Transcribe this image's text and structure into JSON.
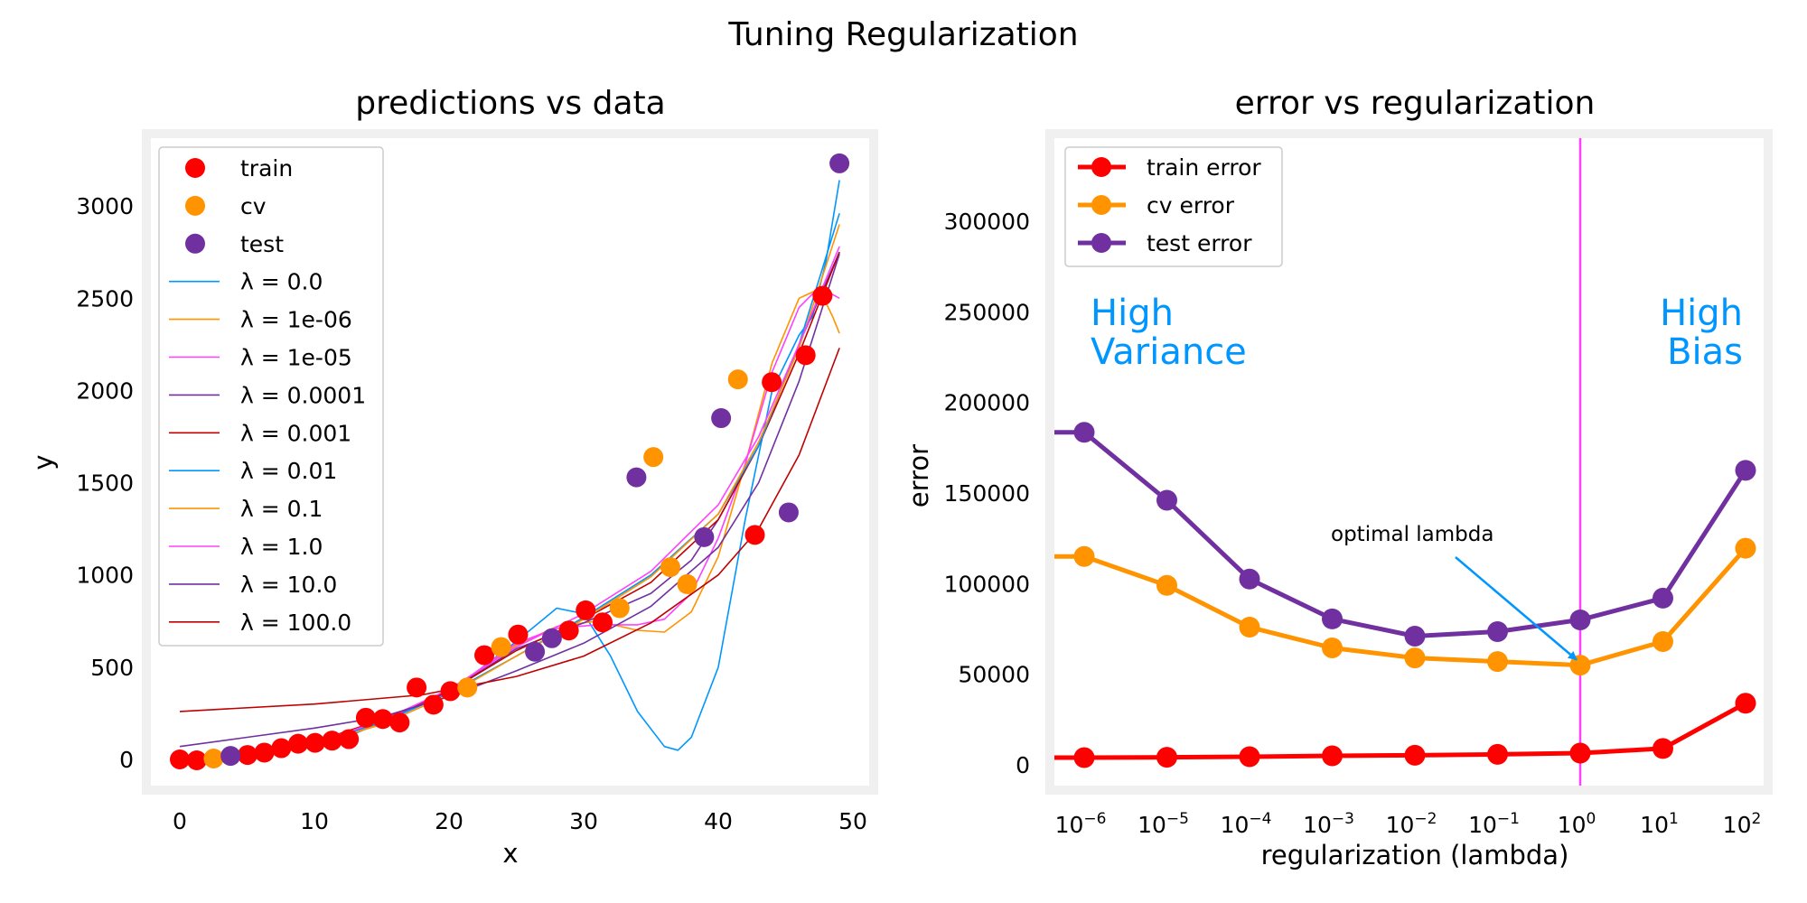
{
  "figure": {
    "title": "Tuning Regularization"
  },
  "chart_data": [
    {
      "type": "scatter",
      "title": "predictions vs data",
      "xlabel": "x",
      "ylabel": "y",
      "xlim": [
        -2,
        51
      ],
      "ylim": [
        -130,
        3370
      ],
      "grid": false,
      "legend_position": "top-left",
      "xticks": [
        0,
        10,
        20,
        30,
        40,
        50
      ],
      "xtick_labels": [
        "0",
        "10",
        "20",
        "30",
        "40",
        "50"
      ],
      "yticks": [
        0,
        500,
        1000,
        1500,
        2000,
        2500,
        3000
      ],
      "ytick_labels": [
        "0",
        "500",
        "1000",
        "1500",
        "2000",
        "2500",
        "3000"
      ],
      "points": [
        {
          "name": "train",
          "color": "#ff0000",
          "x": [
            0,
            1.26,
            5.03,
            6.28,
            7.54,
            8.79,
            10.05,
            11.31,
            12.56,
            13.82,
            15.08,
            16.33,
            17.59,
            18.85,
            20.1,
            22.62,
            25.13,
            28.9,
            30.15,
            31.41,
            42.72,
            43.97,
            46.49,
            47.74
          ],
          "y": [
            0,
            -5,
            24,
            37,
            61,
            85,
            90,
            102,
            110,
            226,
            219,
            200,
            390,
            297,
            370,
            565,
            677,
            699,
            808,
            743,
            1217,
            2045,
            2191,
            2513
          ]
        },
        {
          "name": "cv",
          "color": "#ff9300",
          "x": [
            2.51,
            21.36,
            23.87,
            32.67,
            35.18,
            36.44,
            37.69,
            41.46
          ],
          "y": [
            5,
            390,
            609,
            820,
            1639,
            1042,
            950,
            2060
          ]
        },
        {
          "name": "test",
          "color": "#7030a0",
          "x": [
            3.77,
            26.38,
            27.64,
            33.92,
            38.95,
            40.21,
            45.23,
            49.0
          ],
          "y": [
            19,
            584,
            657,
            1529,
            1205,
            1850,
            1339,
            3231
          ]
        }
      ],
      "series": [
        {
          "name": "λ = 0.0",
          "color": "#0096ff",
          "x": [
            0,
            3,
            5,
            8,
            12,
            15,
            20,
            25,
            28,
            30,
            32,
            34,
            36,
            37,
            38,
            40,
            42,
            44,
            46,
            47,
            48,
            49
          ],
          "y": [
            -20,
            30,
            40,
            50,
            110,
            200,
            360,
            640,
            820,
            790,
            560,
            260,
            70,
            50,
            120,
            500,
            1300,
            2000,
            2300,
            2400,
            2700,
            3140
          ]
        },
        {
          "name": "λ = 1e-06",
          "color": "#ff9300",
          "x": [
            0,
            5,
            10,
            15,
            20,
            25,
            28,
            31,
            34,
            36,
            38,
            40,
            42,
            44,
            46,
            47.5,
            48.5,
            49
          ],
          "y": [
            -10,
            30,
            80,
            200,
            370,
            620,
            720,
            750,
            700,
            690,
            800,
            1100,
            1600,
            2150,
            2500,
            2550,
            2400,
            2310
          ]
        },
        {
          "name": "λ = 1e-05",
          "color": "#ff40ff",
          "x": [
            0,
            5,
            10,
            15,
            20,
            25,
            28,
            31,
            34,
            36,
            38,
            40,
            42,
            44,
            46,
            47.5,
            49
          ],
          "y": [
            -5,
            30,
            85,
            200,
            370,
            630,
            710,
            730,
            730,
            760,
            900,
            1200,
            1600,
            2100,
            2450,
            2560,
            2500
          ]
        },
        {
          "name": "λ = 0.0001",
          "color": "#7030a0",
          "x": [
            0,
            5,
            10,
            15,
            20,
            25,
            30,
            35,
            38,
            40,
            43,
            46,
            49
          ],
          "y": [
            0,
            30,
            90,
            210,
            370,
            600,
            740,
            900,
            1080,
            1300,
            1700,
            2250,
            2750
          ]
        },
        {
          "name": "λ = 0.001",
          "color": "#c00000",
          "x": [
            0,
            5,
            10,
            15,
            20,
            25,
            30,
            35,
            40,
            43,
            46,
            49
          ],
          "y": [
            0,
            35,
            95,
            215,
            370,
            590,
            760,
            960,
            1300,
            1700,
            2200,
            2750
          ]
        },
        {
          "name": "λ = 0.01",
          "color": "#0096ff",
          "x": [
            0,
            5,
            10,
            15,
            20,
            25,
            30,
            35,
            40,
            43,
            46,
            49
          ],
          "y": [
            -10,
            30,
            90,
            200,
            360,
            560,
            770,
            1000,
            1330,
            1700,
            2250,
            2960
          ]
        },
        {
          "name": "λ = 0.1",
          "color": "#ff9300",
          "x": [
            0,
            5,
            10,
            15,
            20,
            25,
            30,
            35,
            40,
            43,
            46,
            49
          ],
          "y": [
            -10,
            25,
            80,
            190,
            350,
            560,
            760,
            990,
            1330,
            1720,
            2230,
            2900
          ]
        },
        {
          "name": "λ = 1.0",
          "color": "#ff40ff",
          "x": [
            0,
            5,
            10,
            15,
            20,
            25,
            30,
            35,
            40,
            43,
            46,
            49
          ],
          "y": [
            -5,
            30,
            90,
            210,
            380,
            610,
            790,
            1020,
            1380,
            1750,
            2250,
            2780
          ]
        },
        {
          "name": "λ = 10.0",
          "color": "#7030a0",
          "x": [
            0,
            5,
            10,
            15,
            20,
            25,
            30,
            35,
            40,
            43,
            46,
            49
          ],
          "y": [
            70,
            120,
            170,
            230,
            340,
            480,
            630,
            830,
            1150,
            1500,
            2050,
            2740
          ]
        },
        {
          "name": "λ = 100.0",
          "color": "#c00000",
          "x": [
            0,
            10,
            18,
            25,
            30,
            35,
            40,
            43,
            46,
            49
          ],
          "y": [
            260,
            300,
            350,
            450,
            560,
            740,
            1000,
            1250,
            1650,
            2230
          ]
        }
      ]
    },
    {
      "type": "line",
      "title": "error vs regularization",
      "xlabel": "regularization (lambda)",
      "ylabel": "error",
      "xscale": "log",
      "xlim": [
        6e-07,
        160
      ],
      "ylim": [
        -10000,
        345000
      ],
      "grid": false,
      "legend_position": "top-left",
      "xticks": [
        1e-06,
        1e-05,
        0.0001,
        0.001,
        0.01,
        0.1,
        1,
        10,
        100
      ],
      "xtick_labels": [
        "10^−6",
        "10^−5",
        "10^−4",
        "10^−3",
        "10^−2",
        "10^−1",
        "10^0",
        "10^1",
        "10^2"
      ],
      "yticks": [
        0,
        50000,
        100000,
        150000,
        200000,
        250000,
        300000
      ],
      "ytick_labels": [
        "0",
        "50000",
        "100000",
        "150000",
        "200000",
        "250000",
        "300000"
      ],
      "x": [
        0,
        1e-06,
        1e-05,
        0.0001,
        0.001,
        0.01,
        0.1,
        1,
        10,
        100
      ],
      "series": [
        {
          "name": "train error",
          "color": "#ff0000",
          "values": [
            4000,
            4000,
            4200,
            4500,
            5000,
            5300,
            5800,
            6500,
            9000,
            34000
          ]
        },
        {
          "name": "cv error",
          "color": "#ff9300",
          "values": [
            115000,
            115000,
            99000,
            76000,
            64500,
            59000,
            57000,
            55000,
            68000,
            119500
          ]
        },
        {
          "name": "test error",
          "color": "#7030a0",
          "values": [
            183500,
            183500,
            146000,
            102500,
            80500,
            71000,
            73500,
            80000,
            92000,
            162500
          ]
        }
      ],
      "vline": {
        "x": 1,
        "color": "#ff40ff"
      },
      "annotations": [
        {
          "text": "High\nVariance",
          "lines": [
            "High",
            "Variance"
          ],
          "color": "#0096ff"
        },
        {
          "text": "High\nBias",
          "lines": [
            "High",
            "Bias"
          ],
          "color": "#0096ff"
        },
        {
          "text": "optimal lambda",
          "color": "#000000",
          "arrow_from": [
            0.031,
            114600
          ],
          "arrow_to": [
            1,
            55000
          ],
          "arrow_color": "#0096ff"
        }
      ]
    }
  ]
}
